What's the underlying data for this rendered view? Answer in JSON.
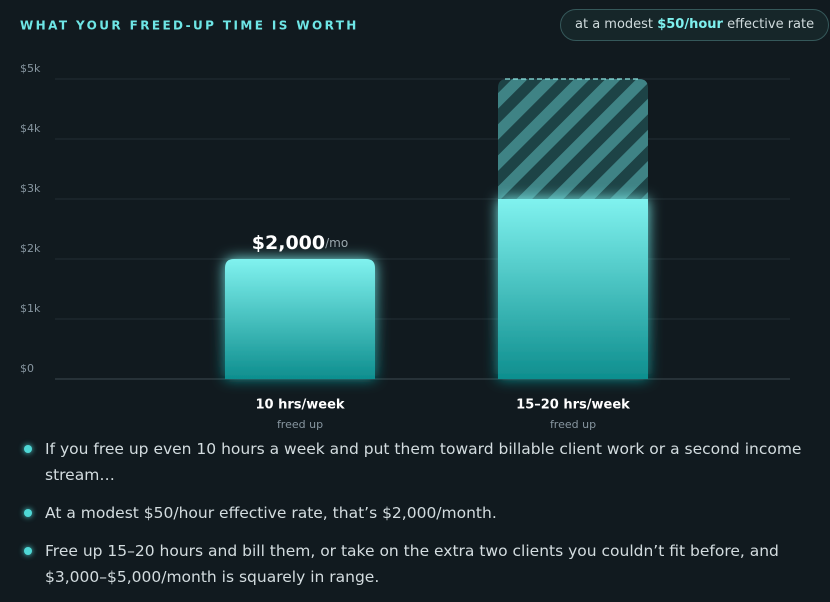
{
  "chart_data": {
    "type": "bar",
    "title": "WHAT YOUR FREED-UP TIME IS WORTH",
    "categories": [
      "10 hrs/week",
      "15–20 hrs/week"
    ],
    "category_sublabels": [
      "freed up",
      "freed up"
    ],
    "values": [
      2000,
      3000
    ],
    "upper_values": [
      null,
      5000
    ],
    "value_labels": [
      "$2,000",
      null
    ],
    "value_label_unit": "/mo",
    "color": "#2fc4c4",
    "ylim": [
      0,
      5000
    ],
    "yticks": [
      {
        "value": 0,
        "label": "$0"
      },
      {
        "value": 1000,
        "label": "$1k"
      },
      {
        "value": 2000,
        "label": "$2k"
      },
      {
        "value": 3000,
        "label": "$3k"
      },
      {
        "value": 4000,
        "label": "$4k"
      },
      {
        "value": 5000,
        "label": "$5k"
      }
    ],
    "grid": true
  },
  "badge": {
    "prefix": "at a modest",
    "highlight": "$50/hour",
    "suffix": "effective rate"
  },
  "notes": [
    "If you free up even 10 hours a week and put them toward billable client work or a second income stream…",
    "At a modest $50/hour effective rate, that’s $2,000/month.",
    "Free up 15–20 hours and bill them, or take on the extra two clients you couldn’t fit before, and $3,000–$5,000/month is squarely in range."
  ]
}
